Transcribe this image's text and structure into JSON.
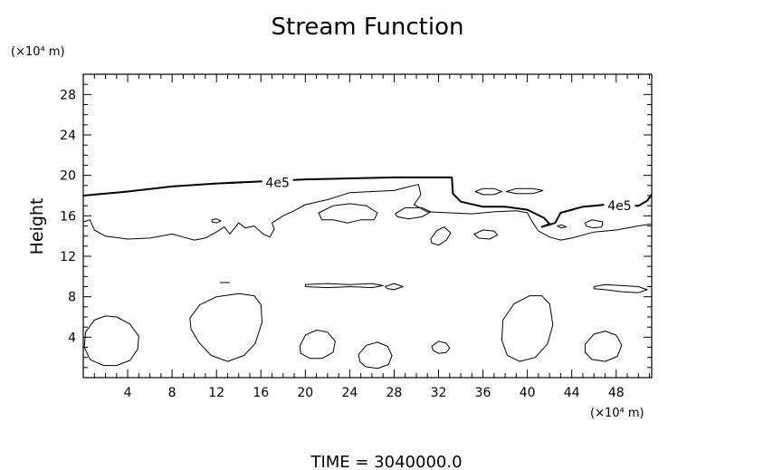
{
  "chart_data": {
    "type": "contour",
    "title": "Stream Function",
    "xlabel": "",
    "ylabel": "Height",
    "x_unit": "(×10⁴ m)",
    "y_unit": "(×10⁴ m)",
    "xlim": [
      0,
      51.2
    ],
    "ylim": [
      0,
      30
    ],
    "xticks": [
      4,
      8,
      12,
      16,
      20,
      24,
      28,
      32,
      36,
      40,
      44,
      48
    ],
    "yticks": [
      4,
      8,
      12,
      16,
      20,
      24,
      28
    ],
    "xticks_minor_step": 1,
    "yticks_minor_step": 1,
    "grid": false,
    "footer": "TIME = 3040000.0",
    "contours": [
      {
        "label": "4e5",
        "labeled": true,
        "style": "bold",
        "points": [
          [
            0,
            18
          ],
          [
            2,
            18.2
          ],
          [
            4,
            18.4
          ],
          [
            8,
            18.9
          ],
          [
            12,
            19.2
          ],
          [
            16,
            19.4
          ],
          [
            18,
            19.5
          ],
          [
            20,
            19.6
          ],
          [
            24,
            19.7
          ],
          [
            28,
            19.8
          ],
          [
            32,
            19.8
          ],
          [
            33.2,
            19.8
          ],
          [
            33.3,
            18.2
          ],
          [
            34,
            17.4
          ],
          [
            36,
            16.9
          ],
          [
            38,
            16.9
          ],
          [
            40,
            16.6
          ],
          [
            41.5,
            15.8
          ],
          [
            42,
            15.2
          ],
          [
            41.3,
            14.9
          ],
          [
            42.5,
            15.3
          ],
          [
            43,
            16.3
          ],
          [
            44,
            16.6
          ],
          [
            45,
            16.9
          ],
          [
            46,
            17
          ],
          [
            47,
            17.1
          ],
          [
            48,
            17
          ],
          [
            49,
            17
          ],
          [
            50,
            17
          ],
          [
            50.8,
            17.5
          ],
          [
            51.2,
            18.1
          ]
        ]
      },
      {
        "label": "",
        "labeled": false,
        "style": "thin",
        "points": [
          [
            0,
            15.4
          ],
          [
            0.6,
            15.6
          ],
          [
            1,
            14.6
          ],
          [
            2,
            14
          ],
          [
            4,
            13.7
          ],
          [
            6,
            13.8
          ],
          [
            8,
            14.2
          ],
          [
            9,
            13.9
          ],
          [
            10,
            13.6
          ],
          [
            11,
            13.8
          ],
          [
            12,
            14.4
          ],
          [
            12.7,
            14.9
          ],
          [
            13.2,
            14.2
          ],
          [
            14,
            15.3
          ],
          [
            14.6,
            14.8
          ],
          [
            15.4,
            15
          ],
          [
            16.2,
            14.2
          ],
          [
            16.8,
            13.9
          ],
          [
            17.2,
            14.7
          ],
          [
            17,
            15.3
          ],
          [
            18,
            16
          ],
          [
            19,
            16.5
          ],
          [
            20,
            17.1
          ],
          [
            22,
            17.6
          ],
          [
            24,
            18.3
          ],
          [
            26,
            18.4
          ],
          [
            28,
            18.5
          ],
          [
            29,
            18.8
          ],
          [
            30.2,
            19.1
          ],
          [
            30.4,
            18.1
          ],
          [
            29.8,
            17.1
          ],
          [
            31,
            16.4
          ],
          [
            33,
            16.3
          ],
          [
            35,
            16.2
          ],
          [
            37,
            16.4
          ],
          [
            39,
            16.5
          ],
          [
            40,
            16.3
          ],
          [
            40.5,
            15.3
          ],
          [
            41,
            14.5
          ],
          [
            42,
            13.9
          ],
          [
            43,
            13.6
          ],
          [
            44,
            13.8
          ],
          [
            46,
            14.4
          ],
          [
            48,
            14.6
          ],
          [
            50,
            15
          ],
          [
            51.2,
            15.2
          ]
        ]
      },
      {
        "label": "",
        "labeled": false,
        "style": "thin",
        "closed": true,
        "points": [
          [
            21.2,
            16.3
          ],
          [
            22.5,
            17
          ],
          [
            24,
            17.2
          ],
          [
            25.5,
            17
          ],
          [
            26.5,
            16.3
          ],
          [
            26.2,
            15.6
          ],
          [
            25,
            15.6
          ],
          [
            23.8,
            15.3
          ],
          [
            22.5,
            15.6
          ],
          [
            21.5,
            15.6
          ]
        ]
      },
      {
        "label": "",
        "labeled": false,
        "style": "thin",
        "closed": true,
        "points": [
          [
            28.1,
            16.2
          ],
          [
            29,
            16.8
          ],
          [
            30.5,
            16.8
          ],
          [
            31.3,
            16.4
          ],
          [
            30.5,
            15.9
          ],
          [
            29.3,
            15.7
          ],
          [
            28.3,
            15.9
          ]
        ]
      },
      {
        "label": "",
        "labeled": false,
        "style": "thin",
        "closed": true,
        "points": [
          [
            31.3,
            13.7
          ],
          [
            31.8,
            14.5
          ],
          [
            32.5,
            14.9
          ],
          [
            33.1,
            14.3
          ],
          [
            32.7,
            13.6
          ],
          [
            32,
            13.1
          ],
          [
            31.4,
            13.3
          ]
        ]
      },
      {
        "label": "",
        "labeled": false,
        "style": "thin",
        "closed": true,
        "points": [
          [
            35.2,
            14.2
          ],
          [
            36,
            14.6
          ],
          [
            37,
            14.5
          ],
          [
            37.3,
            14.1
          ],
          [
            36.6,
            13.7
          ],
          [
            35.6,
            13.8
          ]
        ]
      },
      {
        "label": "",
        "labeled": false,
        "style": "thin",
        "closed": true,
        "points": [
          [
            45.2,
            15.3
          ],
          [
            45.8,
            15.6
          ],
          [
            46.8,
            15.4
          ],
          [
            46.7,
            14.9
          ],
          [
            45.9,
            14.8
          ],
          [
            45.3,
            15
          ]
        ]
      },
      {
        "label": "",
        "labeled": false,
        "style": "thin",
        "closed": true,
        "points": [
          [
            35.3,
            18.4
          ],
          [
            36,
            18.7
          ],
          [
            37,
            18.7
          ],
          [
            37.7,
            18.4
          ],
          [
            37,
            18.1
          ],
          [
            36,
            18.1
          ]
        ]
      },
      {
        "label": "",
        "labeled": false,
        "style": "thin",
        "closed": true,
        "points": [
          [
            38.1,
            18.4
          ],
          [
            39,
            18.7
          ],
          [
            40.5,
            18.7
          ],
          [
            41.4,
            18.5
          ],
          [
            40.5,
            18.2
          ],
          [
            39,
            18.2
          ]
        ]
      },
      {
        "label": "",
        "labeled": false,
        "style": "thin",
        "closed": true,
        "points": [
          [
            11.6,
            15.6
          ],
          [
            12,
            15.7
          ],
          [
            12.4,
            15.5
          ],
          [
            12,
            15.3
          ],
          [
            11.6,
            15.4
          ]
        ]
      },
      {
        "label": "",
        "labeled": false,
        "style": "thin",
        "closed": true,
        "points": [
          [
            42.7,
            15
          ],
          [
            43.1,
            15.1
          ],
          [
            43.5,
            14.9
          ],
          [
            43,
            14.8
          ]
        ]
      },
      {
        "label": "",
        "labeled": false,
        "style": "thin",
        "points": [
          [
            12.3,
            9.4
          ],
          [
            13.2,
            9.4
          ]
        ]
      },
      {
        "label": "",
        "labeled": false,
        "style": "thin",
        "closed": true,
        "points": [
          [
            20,
            9.2
          ],
          [
            22,
            9.3
          ],
          [
            24,
            9.2
          ],
          [
            26,
            9.3
          ],
          [
            27,
            9.1
          ],
          [
            26,
            8.9
          ],
          [
            24,
            9
          ],
          [
            22,
            8.9
          ],
          [
            20,
            9
          ]
        ]
      },
      {
        "label": "",
        "labeled": false,
        "style": "thin",
        "closed": true,
        "points": [
          [
            27.2,
            9
          ],
          [
            28,
            9.3
          ],
          [
            28.8,
            9
          ],
          [
            28,
            8.7
          ],
          [
            27.4,
            8.8
          ]
        ]
      },
      {
        "label": "",
        "labeled": false,
        "style": "thin",
        "closed": true,
        "points": [
          [
            46,
            9
          ],
          [
            47,
            9.2
          ],
          [
            48.5,
            9.1
          ],
          [
            50,
            9
          ],
          [
            50.8,
            8.7
          ],
          [
            50,
            8.4
          ],
          [
            48.5,
            8.5
          ],
          [
            47,
            8.7
          ],
          [
            46,
            8.8
          ]
        ]
      },
      {
        "label": "",
        "labeled": false,
        "style": "thin",
        "closed": true,
        "points": [
          [
            0.2,
            4.5
          ],
          [
            1,
            5.7
          ],
          [
            2,
            6.1
          ],
          [
            3,
            6
          ],
          [
            4.2,
            5.3
          ],
          [
            5,
            4.1
          ],
          [
            4.9,
            2.8
          ],
          [
            4.2,
            1.7
          ],
          [
            3,
            1.2
          ],
          [
            1.8,
            1.2
          ],
          [
            0.6,
            1.8
          ],
          [
            0.1,
            3
          ]
        ]
      },
      {
        "label": "",
        "labeled": false,
        "style": "thin",
        "closed": true,
        "points": [
          [
            9.6,
            5.9
          ],
          [
            10.5,
            7.2
          ],
          [
            12,
            8
          ],
          [
            14,
            8.3
          ],
          [
            15.4,
            8.1
          ],
          [
            16,
            7.2
          ],
          [
            16.1,
            5.5
          ],
          [
            15.5,
            3.4
          ],
          [
            14.5,
            2.2
          ],
          [
            13,
            1.6
          ],
          [
            11.5,
            2.2
          ],
          [
            10.4,
            3.5
          ],
          [
            9.7,
            4.8
          ]
        ]
      },
      {
        "label": "",
        "labeled": false,
        "style": "thin",
        "closed": true,
        "points": [
          [
            19.5,
            3.1
          ],
          [
            20,
            4.2
          ],
          [
            21,
            4.7
          ],
          [
            22,
            4.5
          ],
          [
            22.7,
            3.6
          ],
          [
            22.5,
            2.5
          ],
          [
            21.5,
            1.9
          ],
          [
            20.4,
            1.9
          ],
          [
            19.6,
            2.4
          ]
        ]
      },
      {
        "label": "",
        "labeled": false,
        "style": "thin",
        "closed": true,
        "points": [
          [
            24.8,
            2.3
          ],
          [
            25.5,
            3.2
          ],
          [
            26.5,
            3.5
          ],
          [
            27.4,
            3.1
          ],
          [
            27.8,
            2.2
          ],
          [
            27.5,
            1.3
          ],
          [
            26.5,
            0.9
          ],
          [
            25.4,
            1.1
          ],
          [
            24.9,
            1.6
          ]
        ]
      },
      {
        "label": "",
        "labeled": false,
        "style": "thin",
        "closed": true,
        "points": [
          [
            31.4,
            3.1
          ],
          [
            32,
            3.6
          ],
          [
            32.7,
            3.4
          ],
          [
            33,
            2.9
          ],
          [
            32.7,
            2.5
          ],
          [
            32,
            2.4
          ],
          [
            31.5,
            2.7
          ]
        ]
      },
      {
        "label": "",
        "labeled": false,
        "style": "thin",
        "closed": true,
        "points": [
          [
            37.8,
            5.7
          ],
          [
            38.8,
            7.3
          ],
          [
            40.2,
            8.1
          ],
          [
            41.3,
            8.1
          ],
          [
            42,
            7.3
          ],
          [
            42.3,
            5.2
          ],
          [
            41.8,
            3.3
          ],
          [
            40.7,
            2
          ],
          [
            39.3,
            1.6
          ],
          [
            38.2,
            2.2
          ],
          [
            37.7,
            3.7
          ]
        ]
      },
      {
        "label": "",
        "labeled": false,
        "style": "thin",
        "closed": true,
        "points": [
          [
            45.2,
            3.3
          ],
          [
            46,
            4.3
          ],
          [
            47,
            4.6
          ],
          [
            48,
            4.2
          ],
          [
            48.5,
            3.2
          ],
          [
            48.1,
            2.1
          ],
          [
            47,
            1.6
          ],
          [
            45.8,
            1.8
          ],
          [
            45.2,
            2.5
          ]
        ]
      }
    ],
    "contour_labels": [
      {
        "text": "4e5",
        "x": 17.5,
        "y": 19.3
      },
      {
        "text": "4e5",
        "x": 48.3,
        "y": 17
      }
    ]
  }
}
